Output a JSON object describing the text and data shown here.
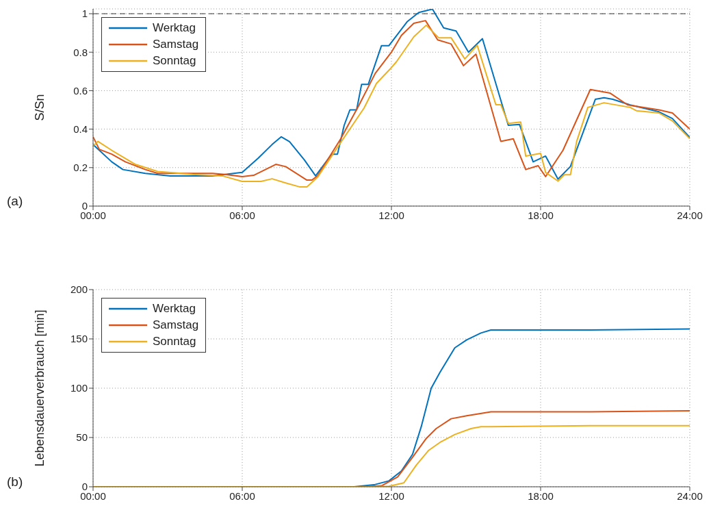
{
  "chart_data": [
    {
      "type": "line",
      "ylabel": "S/Sn",
      "annotations": [
        "(a)"
      ],
      "xlim": [
        0,
        24
      ],
      "xticks": [
        {
          "value": 0,
          "label": "00:00"
        },
        {
          "value": 6,
          "label": "06:00"
        },
        {
          "value": 12,
          "label": "12:00"
        },
        {
          "value": 18,
          "label": "18:00"
        },
        {
          "value": 24,
          "label": "24:00"
        }
      ],
      "ylim": [
        0,
        1.025
      ],
      "yticks": [
        0,
        0.2,
        0.4,
        0.6,
        0.8,
        1
      ],
      "grid": true,
      "legend": "top left",
      "line_style": "solid",
      "marker": "none",
      "ref_lines": [
        {
          "axis": "y",
          "value": 1,
          "color": "#333333",
          "line_style": "dashed"
        }
      ],
      "series": [
        {
          "name": "Werktag",
          "color": "#0072bd",
          "x": [
            0,
            0.75,
            1.2,
            2.1,
            3.1,
            4.8,
            6,
            6.65,
            7.2,
            7.57,
            7.9,
            8.5,
            8.95,
            9.6,
            9.83,
            10.1,
            10.33,
            10.6,
            10.8,
            11.07,
            11.6,
            11.9,
            12.63,
            13.1,
            13.65,
            14.1,
            14.6,
            15.1,
            15.66,
            16.7,
            17.15,
            17.7,
            18.2,
            18.7,
            19.2,
            20.2,
            20.55,
            20.9,
            21.6,
            22.76,
            23.3,
            24
          ],
          "values": [
            0.32,
            0.23,
            0.19,
            0.17,
            0.157,
            0.157,
            0.175,
            0.25,
            0.32,
            0.36,
            0.335,
            0.24,
            0.157,
            0.27,
            0.27,
            0.42,
            0.5,
            0.5,
            0.633,
            0.633,
            0.834,
            0.834,
            0.958,
            1.006,
            1.024,
            0.926,
            0.91,
            0.8,
            0.87,
            0.42,
            0.424,
            0.23,
            0.26,
            0.14,
            0.206,
            0.555,
            0.563,
            0.555,
            0.526,
            0.49,
            0.455,
            0.357
          ]
        },
        {
          "name": "Samstag",
          "color": "#d95319",
          "x": [
            0,
            0.25,
            0.75,
            1.3,
            2.1,
            2.6,
            4.8,
            5.3,
            6,
            6.46,
            7.35,
            7.75,
            8.6,
            8.8,
            9.03,
            9.96,
            10.7,
            11.35,
            12,
            12.4,
            12.9,
            13.37,
            13.86,
            14.4,
            14.9,
            15.4,
            16.4,
            16.9,
            17.4,
            17.9,
            18.2,
            18.9,
            20,
            20.8,
            21.5,
            22.76,
            23.3,
            24
          ],
          "values": [
            0.36,
            0.295,
            0.27,
            0.23,
            0.19,
            0.17,
            0.17,
            0.165,
            0.153,
            0.16,
            0.217,
            0.205,
            0.135,
            0.135,
            0.157,
            0.35,
            0.526,
            0.69,
            0.8,
            0.887,
            0.95,
            0.964,
            0.864,
            0.843,
            0.73,
            0.79,
            0.336,
            0.35,
            0.19,
            0.21,
            0.153,
            0.29,
            0.606,
            0.587,
            0.526,
            0.5,
            0.484,
            0.4
          ]
        },
        {
          "name": "Sonntag",
          "color": "#edb120",
          "x": [
            0,
            0.2,
            0.75,
            1.7,
            2.6,
            4,
            5.2,
            6,
            6.75,
            7.2,
            7.75,
            8.3,
            8.6,
            9.03,
            9.96,
            10.9,
            11.4,
            12,
            12.2,
            12.9,
            13.4,
            13.9,
            14.4,
            14.95,
            15.45,
            16.2,
            16.4,
            16.7,
            17.2,
            17.4,
            18,
            18.2,
            18.7,
            18.95,
            19.2,
            19.45,
            19.9,
            20.55,
            21.6,
            21.85,
            22.76,
            23.3,
            24
          ],
          "values": [
            0.313,
            0.336,
            0.29,
            0.217,
            0.18,
            0.165,
            0.157,
            0.128,
            0.128,
            0.142,
            0.12,
            0.1,
            0.1,
            0.15,
            0.33,
            0.51,
            0.638,
            0.72,
            0.75,
            0.88,
            0.94,
            0.875,
            0.875,
            0.765,
            0.836,
            0.527,
            0.527,
            0.43,
            0.437,
            0.26,
            0.274,
            0.175,
            0.13,
            0.163,
            0.163,
            0.336,
            0.513,
            0.537,
            0.513,
            0.496,
            0.484,
            0.443,
            0.35
          ]
        }
      ]
    },
    {
      "type": "line",
      "ylabel": "Lebensdauerverbrauch [min]",
      "annotations": [
        "(b)"
      ],
      "xlim": [
        0,
        24
      ],
      "xticks": [
        {
          "value": 0,
          "label": "00:00"
        },
        {
          "value": 6,
          "label": "06:00"
        },
        {
          "value": 12,
          "label": "12:00"
        },
        {
          "value": 18,
          "label": "18:00"
        },
        {
          "value": 24,
          "label": "24:00"
        }
      ],
      "ylim": [
        0,
        200
      ],
      "yticks": [
        0,
        50,
        100,
        150,
        200
      ],
      "grid": true,
      "legend": "top left",
      "line_style": "solid",
      "marker": "none",
      "series": [
        {
          "name": "Werktag",
          "color": "#0072bd",
          "x": [
            0,
            10.5,
            11.3,
            11.9,
            12.4,
            12.85,
            13.2,
            13.6,
            13.95,
            14.55,
            15.03,
            15.6,
            16,
            20,
            24
          ],
          "values": [
            0,
            0,
            2,
            6,
            16,
            33,
            61,
            100,
            116,
            141,
            149,
            156,
            159,
            159,
            160
          ]
        },
        {
          "name": "Samstag",
          "color": "#d95319",
          "x": [
            0,
            10.8,
            11.6,
            12.25,
            12.85,
            13.4,
            13.8,
            14.4,
            15.03,
            15.5,
            16,
            20,
            24
          ],
          "values": [
            0,
            0,
            1,
            10,
            30,
            49,
            59,
            69,
            72,
            74,
            76,
            76,
            77
          ]
        },
        {
          "name": "Sonntag",
          "color": "#edb120",
          "x": [
            0,
            11.2,
            11.9,
            12.5,
            13,
            13.5,
            13.95,
            14.55,
            15.2,
            15.6,
            16,
            20,
            24
          ],
          "values": [
            0,
            0,
            0.5,
            4,
            22,
            37,
            45,
            53,
            59,
            61,
            61,
            62,
            62
          ]
        }
      ]
    }
  ]
}
